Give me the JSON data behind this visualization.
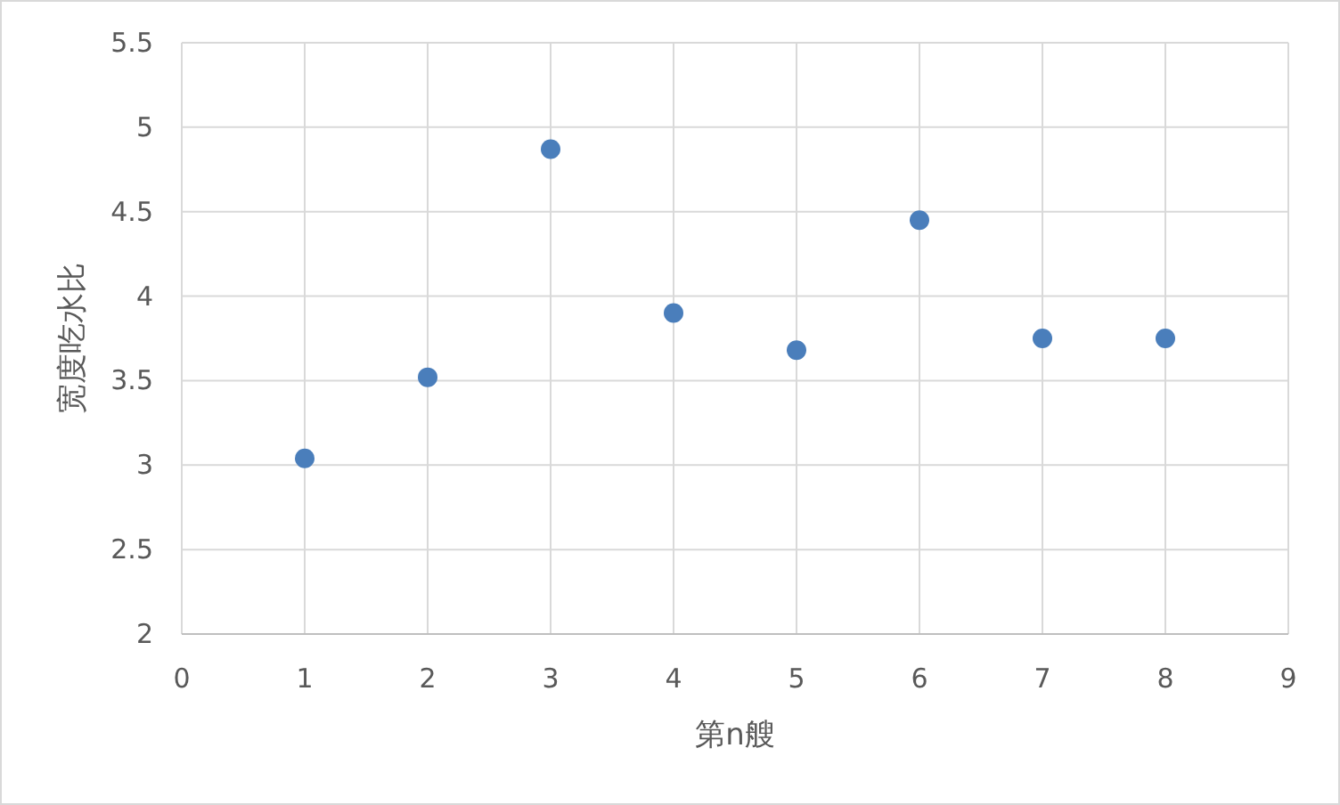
{
  "chart_data": {
    "type": "scatter",
    "xlabel": "第n艘",
    "ylabel": "宽度吃水比",
    "x": [
      1,
      2,
      3,
      4,
      5,
      6,
      7,
      8
    ],
    "series": [
      {
        "color": "#4a7ebb",
        "values": [
          3.04,
          3.52,
          4.87,
          3.9,
          3.68,
          4.45,
          3.75,
          3.75
        ]
      }
    ],
    "xlim": [
      0,
      9
    ],
    "ylim": [
      2,
      5.5
    ],
    "xticks": [
      0,
      1,
      2,
      3,
      4,
      5,
      6,
      7,
      8,
      9
    ],
    "yticks": [
      2,
      2.5,
      3,
      3.5,
      4,
      4.5,
      5,
      5.5
    ],
    "grid": true,
    "marker": "circle"
  }
}
